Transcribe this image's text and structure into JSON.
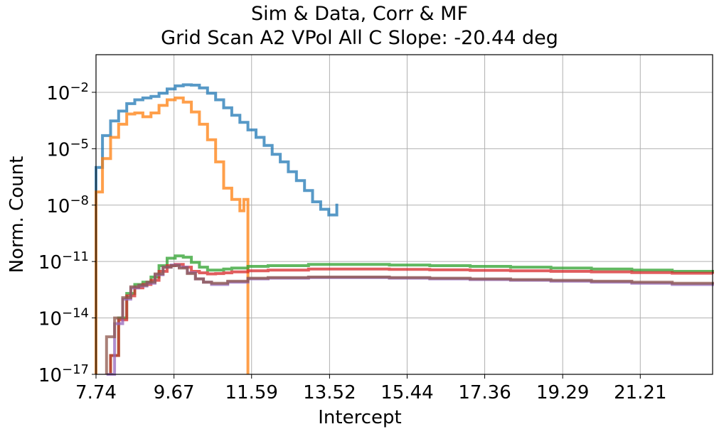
{
  "chart_data": {
    "type": "line",
    "title": "Sim & Data, Corr & MF",
    "subtitle": "Grid Scan A2 VPol All C Slope: -20.44 deg",
    "xlabel": "Intercept",
    "ylabel": "Norm. Count",
    "xlim": [
      7.74,
      23.0
    ],
    "x_ticks": [
      "7.74",
      "9.67",
      "11.59",
      "13.52",
      "15.44",
      "17.36",
      "19.29",
      "21.21"
    ],
    "y_scale": "log",
    "ylim": [
      1e-17,
      1.0
    ],
    "y_ticks": [
      {
        "exp": "-2",
        "value": 0.01
      },
      {
        "exp": "-5",
        "value": 1e-05
      },
      {
        "exp": "-8",
        "value": 1e-08
      },
      {
        "exp": "-11",
        "value": 1e-11
      },
      {
        "exp": "-14",
        "value": 1e-14
      },
      {
        "exp": "-17",
        "value": 1e-17
      }
    ],
    "y_tick_base": "10",
    "grid": true,
    "series": [
      {
        "color": "#1f77b4",
        "x": [
          7.74,
          7.9,
          8.1,
          8.3,
          8.5,
          8.7,
          8.9,
          9.1,
          9.3,
          9.5,
          9.7,
          9.9,
          10.1,
          10.3,
          10.5,
          10.7,
          10.9,
          11.1,
          11.3,
          11.5,
          11.7,
          11.9,
          12.1,
          12.3,
          12.5,
          12.7,
          12.9,
          13.1,
          13.3,
          13.5,
          13.7
        ],
        "y": [
          1e-06,
          5e-05,
          0.0003,
          0.001,
          0.0025,
          0.004,
          0.005,
          0.006,
          0.009,
          0.015,
          0.022,
          0.025,
          0.024,
          0.017,
          0.009,
          0.004,
          0.0015,
          0.0006,
          0.00025,
          0.0001,
          4e-05,
          1.5e-05,
          5e-06,
          2e-06,
          6e-07,
          2e-07,
          6e-08,
          1.5e-08,
          6e-09,
          3e-09,
          1.2e-08
        ]
      },
      {
        "color": "#ff7f0e",
        "x": [
          7.74,
          7.9,
          8.1,
          8.3,
          8.5,
          8.7,
          8.9,
          9.1,
          9.3,
          9.5,
          9.7,
          9.9,
          10.1,
          10.3,
          10.5,
          10.7,
          10.9,
          11.1,
          11.3,
          11.4,
          11.5
        ],
        "y": [
          5e-08,
          3e-06,
          4e-05,
          0.0002,
          0.0007,
          0.0008,
          0.0005,
          0.0008,
          0.002,
          0.004,
          0.005,
          0.003,
          0.0009,
          0.0002,
          3e-05,
          2e-06,
          8e-08,
          2e-08,
          5e-09,
          2e-08,
          1e-17
        ]
      },
      {
        "color": "#2ca02c",
        "x": [
          8.1,
          8.3,
          8.5,
          8.7,
          8.9,
          9.1,
          9.3,
          9.5,
          9.7,
          9.9,
          10.1,
          10.3,
          10.5,
          10.7,
          10.9,
          11.1,
          11.5,
          12.0,
          13.0,
          14.0,
          15.0,
          16.0,
          17.0,
          18.0,
          19.0,
          20.0,
          21.0,
          22.0,
          23.0
        ],
        "y": [
          1e-16,
          1e-14,
          2e-13,
          6e-13,
          8e-13,
          1.5e-12,
          6e-12,
          1.5e-11,
          2e-11,
          1.7e-11,
          9e-12,
          5e-12,
          3.5e-12,
          3.5e-12,
          4e-12,
          4.5e-12,
          5.5e-12,
          6e-12,
          7e-12,
          7e-12,
          6.5e-12,
          6e-12,
          5.5e-12,
          5e-12,
          4.5e-12,
          4e-12,
          3.5e-12,
          3e-12,
          2.5e-12
        ]
      },
      {
        "color": "#d62728",
        "x": [
          8.1,
          8.3,
          8.5,
          8.7,
          8.9,
          9.1,
          9.3,
          9.5,
          9.7,
          9.9,
          10.1,
          10.3,
          10.5,
          10.7,
          10.9,
          11.1,
          11.5,
          12.0,
          13.0,
          14.0,
          15.0,
          16.0,
          17.0,
          18.0,
          19.0,
          20.0,
          21.0,
          22.0,
          23.0
        ],
        "y": [
          1e-16,
          8e-15,
          1.5e-13,
          4e-13,
          6e-13,
          1e-12,
          3e-12,
          6e-12,
          7e-12,
          5e-12,
          3e-12,
          2.5e-12,
          2.2e-12,
          2.3e-12,
          2.5e-12,
          2.8e-12,
          3.2e-12,
          3.5e-12,
          4e-12,
          4e-12,
          3.8e-12,
          3.6e-12,
          3.4e-12,
          3.2e-12,
          3e-12,
          2.8e-12,
          2.6e-12,
          2.4e-12,
          2.2e-12
        ]
      },
      {
        "color": "#9467bd",
        "x": [
          8.0,
          8.2,
          8.4,
          8.6,
          8.8,
          9.0,
          9.2,
          9.4,
          9.6,
          9.8,
          10.0,
          10.2,
          10.4,
          10.6,
          10.8,
          11.0,
          11.5,
          12.0,
          13.0,
          14.0,
          15.0,
          16.0,
          17.0,
          18.0,
          19.0,
          20.0,
          21.0,
          22.0,
          23.0
        ],
        "y": [
          1e-17,
          5e-15,
          1e-13,
          4e-13,
          5e-13,
          7e-13,
          2e-12,
          5e-12,
          6.5e-12,
          5e-12,
          2.5e-12,
          1.2e-12,
          8e-13,
          6e-13,
          6e-13,
          8e-13,
          1.2e-12,
          1.3e-12,
          1.4e-12,
          1.4e-12,
          1.3e-12,
          1.2e-12,
          1.1e-12,
          1e-12,
          9e-13,
          8e-13,
          7e-13,
          6e-13,
          5e-13
        ]
      },
      {
        "color": "#8c564b",
        "x": [
          8.0,
          8.2,
          8.4,
          8.6,
          8.8,
          9.0,
          9.2,
          9.4,
          9.6,
          9.8,
          10.0,
          10.2,
          10.4,
          10.6,
          10.8,
          11.0,
          11.5,
          12.0,
          13.0,
          14.0,
          15.0,
          16.0,
          17.0,
          18.0,
          19.0,
          20.0,
          21.0,
          22.0,
          23.0
        ],
        "y": [
          1e-15,
          1e-14,
          1.2e-13,
          4.5e-13,
          5.5e-13,
          8e-13,
          2.2e-12,
          5e-12,
          6e-12,
          4.5e-12,
          2.3e-12,
          1.2e-12,
          8e-13,
          7e-13,
          7e-13,
          9e-13,
          1.3e-12,
          1.4e-12,
          1.5e-12,
          1.5e-12,
          1.4e-12,
          1.3e-12,
          1.2e-12,
          1.1e-12,
          1e-12,
          9e-13,
          8e-13,
          7e-13,
          6e-13
        ]
      }
    ]
  }
}
